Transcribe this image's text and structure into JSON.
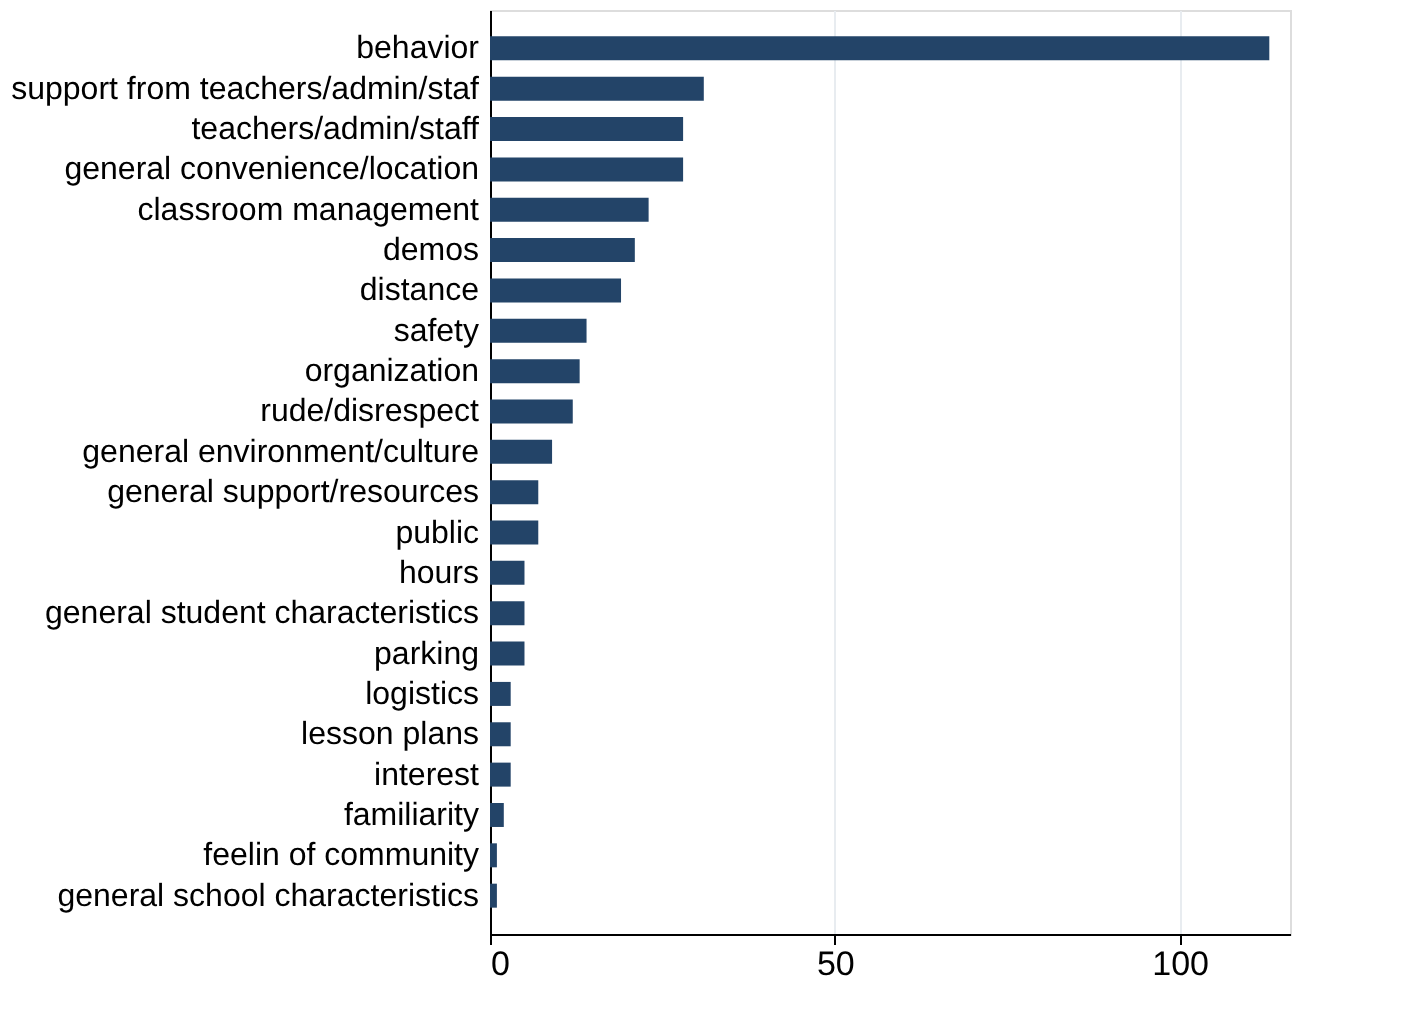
{
  "chart_data": {
    "type": "bar",
    "orientation": "horizontal",
    "categories": [
      "behavior",
      "support from teachers/admin/staf",
      "teachers/admin/staff",
      "general convenience/location",
      "classroom management",
      "demos",
      "distance",
      "safety",
      "organization",
      "rude/disrespect",
      "general environment/culture",
      "general support/resources",
      "public",
      "hours",
      "general student characteristics",
      "parking",
      "logistics",
      "lesson plans",
      "interest",
      "familiarity",
      "feelin of community",
      "general school characteristics"
    ],
    "values": [
      113,
      31,
      28,
      28,
      23,
      21,
      19,
      14,
      13,
      12,
      9,
      7,
      7,
      5,
      5,
      5,
      3,
      3,
      3,
      2,
      1,
      1
    ],
    "color": "#234468",
    "xlim": [
      0,
      116
    ],
    "xticks": [
      0,
      50,
      100
    ],
    "grid": "x"
  }
}
